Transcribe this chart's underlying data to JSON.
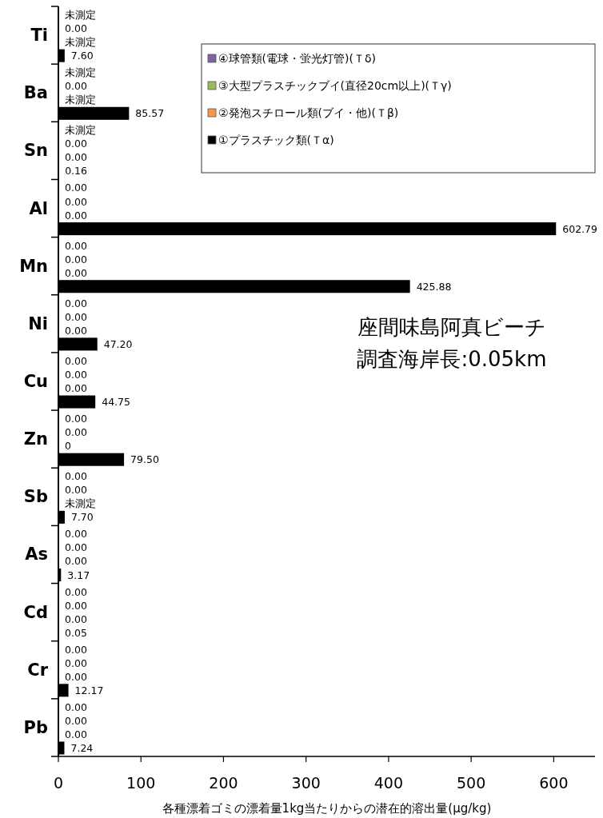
{
  "chart_data": {
    "type": "bar",
    "orientation": "horizontal",
    "xlabel": "各種漂着ゴミの漂着量1kg当たりからの潜在的溶出量(μg/kg)",
    "categories": [
      "Ti",
      "Ba",
      "Sn",
      "Al",
      "Mn",
      "Ni",
      "Cu",
      "Zn",
      "Sb",
      "As",
      "Cd",
      "Cr",
      "Pb"
    ],
    "series": [
      {
        "name": "④球管類(電球・蛍光灯管)(Ｔδ)",
        "color": "#8064a2",
        "values": [
          null,
          null,
          null,
          0,
          0,
          0,
          0,
          0,
          0,
          0,
          0,
          0,
          0
        ],
        "value_labels": [
          "未測定",
          "未測定",
          "未測定",
          "0.00",
          "0.00",
          "0.00",
          "0.00",
          "0.00",
          "0.00",
          "0.00",
          "0.00",
          "0.00",
          "0.00"
        ]
      },
      {
        "name": "③大型プラスチックブイ(直径20cm以上)(Ｔγ)",
        "color": "#9bbb59",
        "values": [
          0,
          0,
          0,
          0,
          0,
          0,
          0,
          0,
          0,
          0,
          0,
          0,
          0
        ],
        "value_labels": [
          "0.00",
          "0.00",
          "0.00",
          "0.00",
          "0.00",
          "0.00",
          "0.00",
          "0.00",
          "0.00",
          "0.00",
          "0.00",
          "0.00",
          "0.00"
        ]
      },
      {
        "name": "②発泡スチロール類(ブイ・他)(Ｔβ)",
        "color": "#f79646",
        "values": [
          null,
          null,
          0,
          0,
          0,
          0,
          0,
          0,
          null,
          0,
          0,
          0,
          0
        ],
        "value_labels": [
          "未測定",
          "未測定",
          "0.00",
          "0.00",
          "0.00",
          "0.00",
          "0.00",
          "0",
          "未測定",
          "0.00",
          "0.00",
          "0.00",
          "0.00"
        ]
      },
      {
        "name": "①プラスチック類(Ｔα)",
        "color": "#000000",
        "values": [
          7.6,
          85.57,
          0.16,
          602.79,
          425.88,
          47.2,
          44.75,
          79.5,
          7.7,
          3.17,
          0.05,
          12.17,
          7.24
        ],
        "value_labels": [
          "7.60",
          "85.57",
          "0.16",
          "602.79",
          "425.88",
          "47.20",
          "44.75",
          "79.50",
          "7.70",
          "3.17",
          "0.05",
          "12.17",
          "7.24"
        ]
      }
    ],
    "xlim": [
      0,
      650
    ],
    "xticks": [
      0,
      100,
      200,
      300,
      400,
      500,
      600
    ],
    "legend": "top right",
    "grid": false,
    "annotations": [
      "座間味島阿真ビーチ",
      "調査海岸長:0.05km"
    ]
  }
}
